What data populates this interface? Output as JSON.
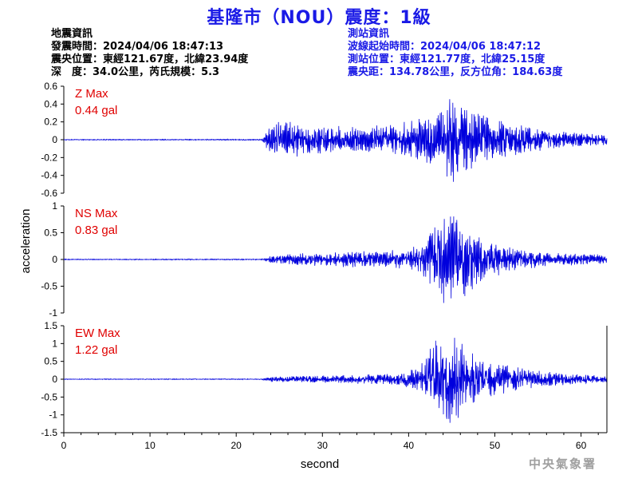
{
  "header": {
    "title": "基隆市（NOU）震度：1級"
  },
  "quake_info": {
    "heading": "地震資訊",
    "origin_time": "發震時間：2024/04/06 18:47:13",
    "epicenter": "震央位置：東經121.67度，北緯23.94度",
    "depth_magnitude": "深　度：34.0公里，芮氏規模：5.3"
  },
  "station_info": {
    "heading": "測站資訊",
    "wave_start": "波線起始時間：2024/04/06 18:47:12",
    "station_location": "測站位置：東經121.77度，北緯25.15度",
    "distance_azimuth": "震央距：134.78公里，反方位角：184.63度"
  },
  "footer": {
    "credit": "中央氣象署"
  },
  "colors": {
    "trace": "#0000dd",
    "max_label": "#e00000",
    "title": "#1a1ae6"
  },
  "chart_data": {
    "type": "line",
    "xlabel": "second",
    "ylabel": "acceleration",
    "xlim": [
      0,
      63
    ],
    "x_ticks": [
      0,
      10,
      20,
      30,
      40,
      50,
      60
    ],
    "panels": [
      {
        "name": "Z",
        "max_label": "Z Max",
        "max_value": "0.44 gal",
        "ylim": [
          -0.6,
          0.6
        ],
        "y_ticks": [
          0.6,
          0.4,
          0.2,
          0,
          -0.2,
          -0.4,
          -0.6
        ],
        "y_tick_labels": [
          "0.6",
          "0.4",
          "0.2",
          "0",
          "-0.2",
          "-0.4",
          "-0.6"
        ],
        "envelope": [
          [
            0,
            0.004
          ],
          [
            23.0,
            0.005
          ],
          [
            23.5,
            0.08
          ],
          [
            24.5,
            0.17
          ],
          [
            26.0,
            0.16
          ],
          [
            30,
            0.12
          ],
          [
            35,
            0.12
          ],
          [
            40,
            0.16
          ],
          [
            43,
            0.26
          ],
          [
            45,
            0.38
          ],
          [
            47,
            0.3
          ],
          [
            50,
            0.18
          ],
          [
            55,
            0.1
          ],
          [
            60,
            0.06
          ],
          [
            63,
            0.05
          ]
        ]
      },
      {
        "name": "NS",
        "max_label": "NS Max",
        "max_value": "0.83 gal",
        "ylim": [
          -1,
          1
        ],
        "y_ticks": [
          1,
          0.5,
          0,
          -0.5,
          -1
        ],
        "y_tick_labels": [
          "1",
          "0.5",
          "0",
          "-0.5",
          "-1"
        ],
        "envelope": [
          [
            0,
            0.006
          ],
          [
            23.0,
            0.008
          ],
          [
            24.0,
            0.05
          ],
          [
            28,
            0.1
          ],
          [
            35,
            0.12
          ],
          [
            40,
            0.15
          ],
          [
            42,
            0.3
          ],
          [
            44,
            0.7
          ],
          [
            45,
            0.65
          ],
          [
            47,
            0.5
          ],
          [
            49,
            0.3
          ],
          [
            52,
            0.18
          ],
          [
            56,
            0.1
          ],
          [
            63,
            0.07
          ]
        ]
      },
      {
        "name": "EW",
        "max_label": "EW Max",
        "max_value": "1.22 gal",
        "ylim": [
          -1.5,
          1.5
        ],
        "y_ticks": [
          1.5,
          1,
          0.5,
          0,
          -0.5,
          -1,
          -1.5
        ],
        "y_tick_labels": [
          "1.5",
          "1",
          "0.5",
          "0",
          "-0.5",
          "-1",
          "-1.5"
        ],
        "envelope": [
          [
            0,
            0.008
          ],
          [
            23.0,
            0.01
          ],
          [
            24.0,
            0.06
          ],
          [
            30,
            0.08
          ],
          [
            38,
            0.12
          ],
          [
            41,
            0.25
          ],
          [
            43,
            0.9
          ],
          [
            44.5,
            1.15
          ],
          [
            46,
            0.8
          ],
          [
            48,
            0.5
          ],
          [
            52,
            0.28
          ],
          [
            56,
            0.16
          ],
          [
            63,
            0.08
          ]
        ]
      }
    ]
  }
}
